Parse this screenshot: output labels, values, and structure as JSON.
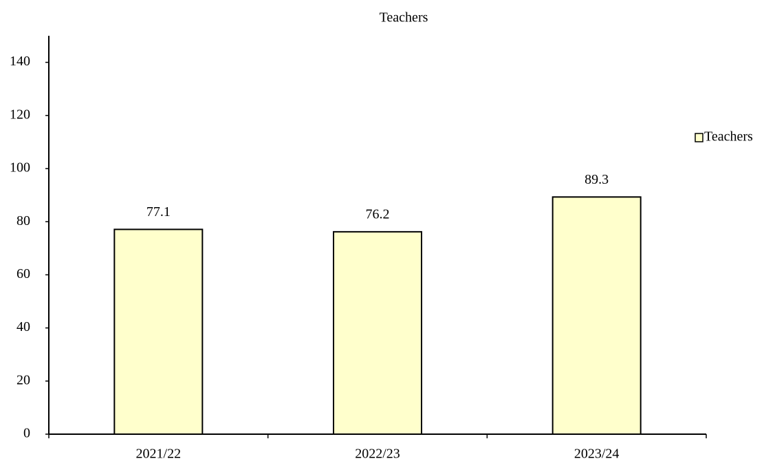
{
  "chart_data": {
    "type": "bar",
    "title": "Teachers",
    "categories": [
      "2021/22",
      "2022/23",
      "2023/24"
    ],
    "series": [
      {
        "name": "Teachers",
        "color": "#ffffcc",
        "values": [
          77.1,
          76.2,
          89.3
        ]
      }
    ],
    "ylim": [
      0,
      150
    ],
    "yticks": [
      0,
      20,
      40,
      60,
      80,
      100,
      120,
      140
    ],
    "grid": false,
    "legend": "right"
  }
}
